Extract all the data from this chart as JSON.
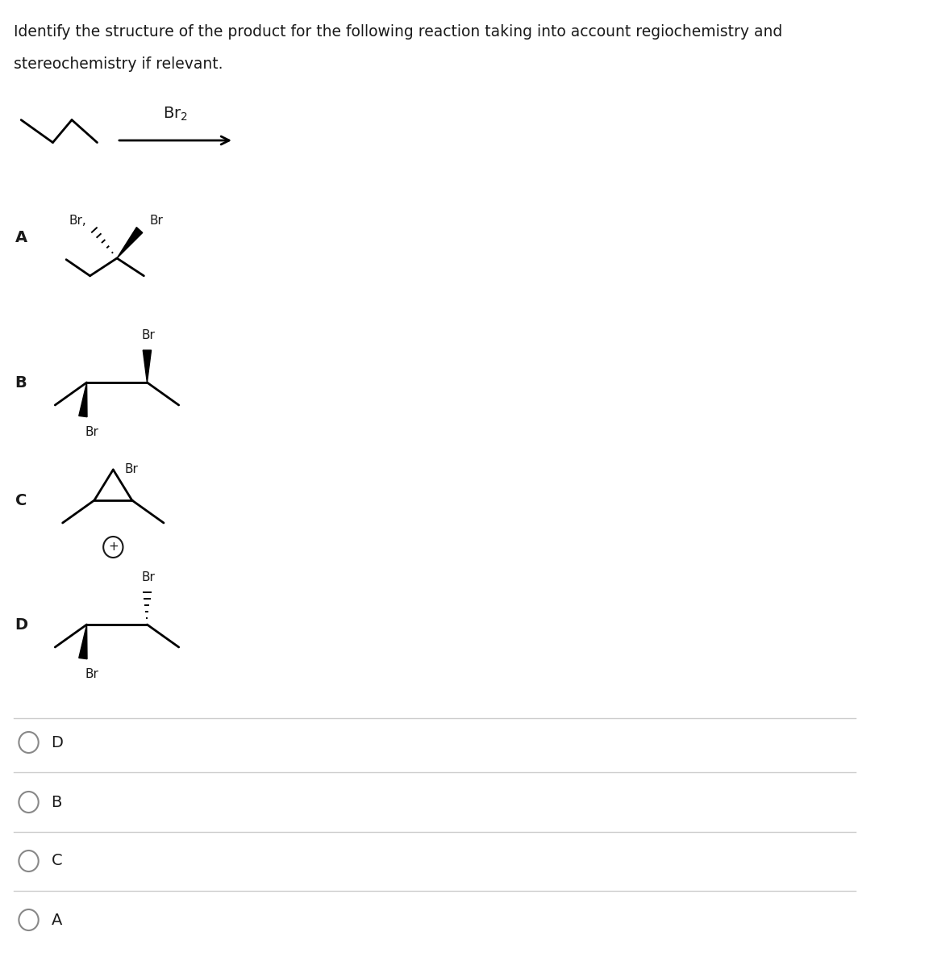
{
  "title_line1": "Identify the structure of the product for the following reaction taking into account regiochemistry and",
  "title_line2": "stereochemistry if relevant.",
  "bg_color": "#ffffff",
  "text_color": "#1a1a1a",
  "choices": [
    "D",
    "B",
    "C",
    "A"
  ]
}
